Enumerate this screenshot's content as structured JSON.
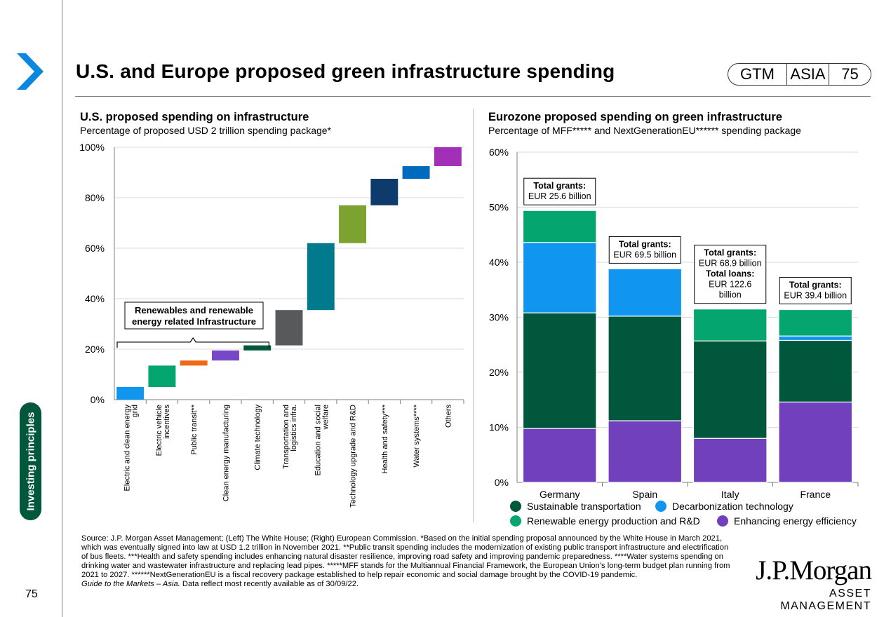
{
  "header": {
    "title": "U.S. and Europe proposed green infrastructure spending",
    "gtm": "GTM",
    "region": "ASIA",
    "page": "75"
  },
  "sidebar": {
    "label": "Investing principles",
    "page_number": "75"
  },
  "left_panel": {
    "title": "U.S. proposed spending on infrastructure",
    "subtitle": "Percentage of proposed USD 2 trillion spending package*"
  },
  "right_panel": {
    "title": "Eurozone proposed spending on green infrastructure",
    "subtitle": "Percentage of MFF***** and NextGenerationEU****** spending package"
  },
  "chart_data": [
    {
      "type": "bar",
      "subtype": "waterfall",
      "categories": [
        "Electric and clean energy grid",
        "Electric vehicle incentives",
        "Public transit**",
        "Clean energy manufacturing",
        "Climate technology",
        "Transportation and logistics infra.",
        "Education and social welfare",
        "Technology upgrade and R&D",
        "Health and safety***",
        "Water systems****",
        "Others"
      ],
      "start": [
        0,
        5,
        13.5,
        15.5,
        19.5,
        21.5,
        35.5,
        62,
        77,
        87.5,
        92.5
      ],
      "end": [
        5,
        13.5,
        15.5,
        19.5,
        21.5,
        35.5,
        62,
        77,
        87.5,
        92.5,
        100
      ],
      "colors": [
        "#1196f0",
        "#05a56f",
        "#ed6b17",
        "#7747c5",
        "#00573c",
        "#58595b",
        "#007a8c",
        "#7ca32f",
        "#0e3b6c",
        "#006bbc",
        "#a32fb8"
      ],
      "ylim": [
        0,
        100
      ],
      "yticks": [
        "0%",
        "20%",
        "40%",
        "60%",
        "80%",
        "100%"
      ],
      "annotation": "Renewables and renewable energy related Infrastructure",
      "grid": true
    },
    {
      "type": "bar",
      "subtype": "stacked",
      "categories": [
        "Germany",
        "Spain",
        "Italy",
        "France"
      ],
      "series": [
        {
          "name": "Enhancing energy efficiency",
          "color": "#7040bd",
          "values": [
            9.8,
            11.2,
            8.0,
            14.6
          ]
        },
        {
          "name": "Sustainable transportation",
          "color": "#00573c",
          "values": [
            21.0,
            19.0,
            17.7,
            11.2
          ]
        },
        {
          "name": "Decarbonization technology",
          "color": "#1196f0",
          "values": [
            12.8,
            8.6,
            0,
            0.8
          ]
        },
        {
          "name": "Renewable energy production and R&D",
          "color": "#05a56f",
          "values": [
            5.8,
            0,
            5.8,
            4.8
          ]
        }
      ],
      "ylim": [
        0,
        60
      ],
      "yticks": [
        "0%",
        "10%",
        "20%",
        "30%",
        "40%",
        "50%",
        "60%"
      ],
      "annotations": [
        {
          "label": "Total grants",
          "value": "EUR 25.6 billion"
        },
        {
          "label": "Total grants",
          "value": "EUR 69.5 billion"
        },
        {
          "label": "Total grants",
          "value": "EUR 68.9 billion",
          "label2": "Total loans",
          "value2": "EUR 122.6 billion"
        },
        {
          "label": "Total grants",
          "value": "EUR 39.4 billion"
        }
      ],
      "legend": [
        {
          "name": "Sustainable transportation",
          "color": "#00573c"
        },
        {
          "name": "Decarbonization technology",
          "color": "#1196f0"
        },
        {
          "name": "Renewable energy production and R&D",
          "color": "#05a56f"
        },
        {
          "name": "Enhancing energy efficiency",
          "color": "#7040bd"
        }
      ],
      "grid": true
    }
  ],
  "footer": {
    "source": "Source: J.P. Morgan Asset Management; (Left) The White House; (Right) European Commission. *Based on the initial spending proposal announced by the White House in March 2021, which was eventually signed into law at USD 1.2 trillion in November 2021. **Public transit spending includes the modernization of existing public transport infrastructure and electrification of bus fleets. ***Health and safety spending includes enhancing natural disaster resilience, improving road safety and improving pandemic preparedness. ****Water systems spending on drinking water and wastewater infrastructure and replacing lead pipes. *****MFF stands for the Multiannual Financial Framework, the European Union’s long-term budget plan running from 2021 to 2027. ******NextGenerationEU is a fiscal recovery package established to help repair economic and social damage brought by the COVID-19 pandemic.",
    "guide_italic": "Guide to the Markets – Asia.",
    "guide_rest": " Data reflect most recently available as of 30/09/22."
  },
  "logo": {
    "name": "J.P.Morgan",
    "tagline": "ASSET MANAGEMENT"
  }
}
